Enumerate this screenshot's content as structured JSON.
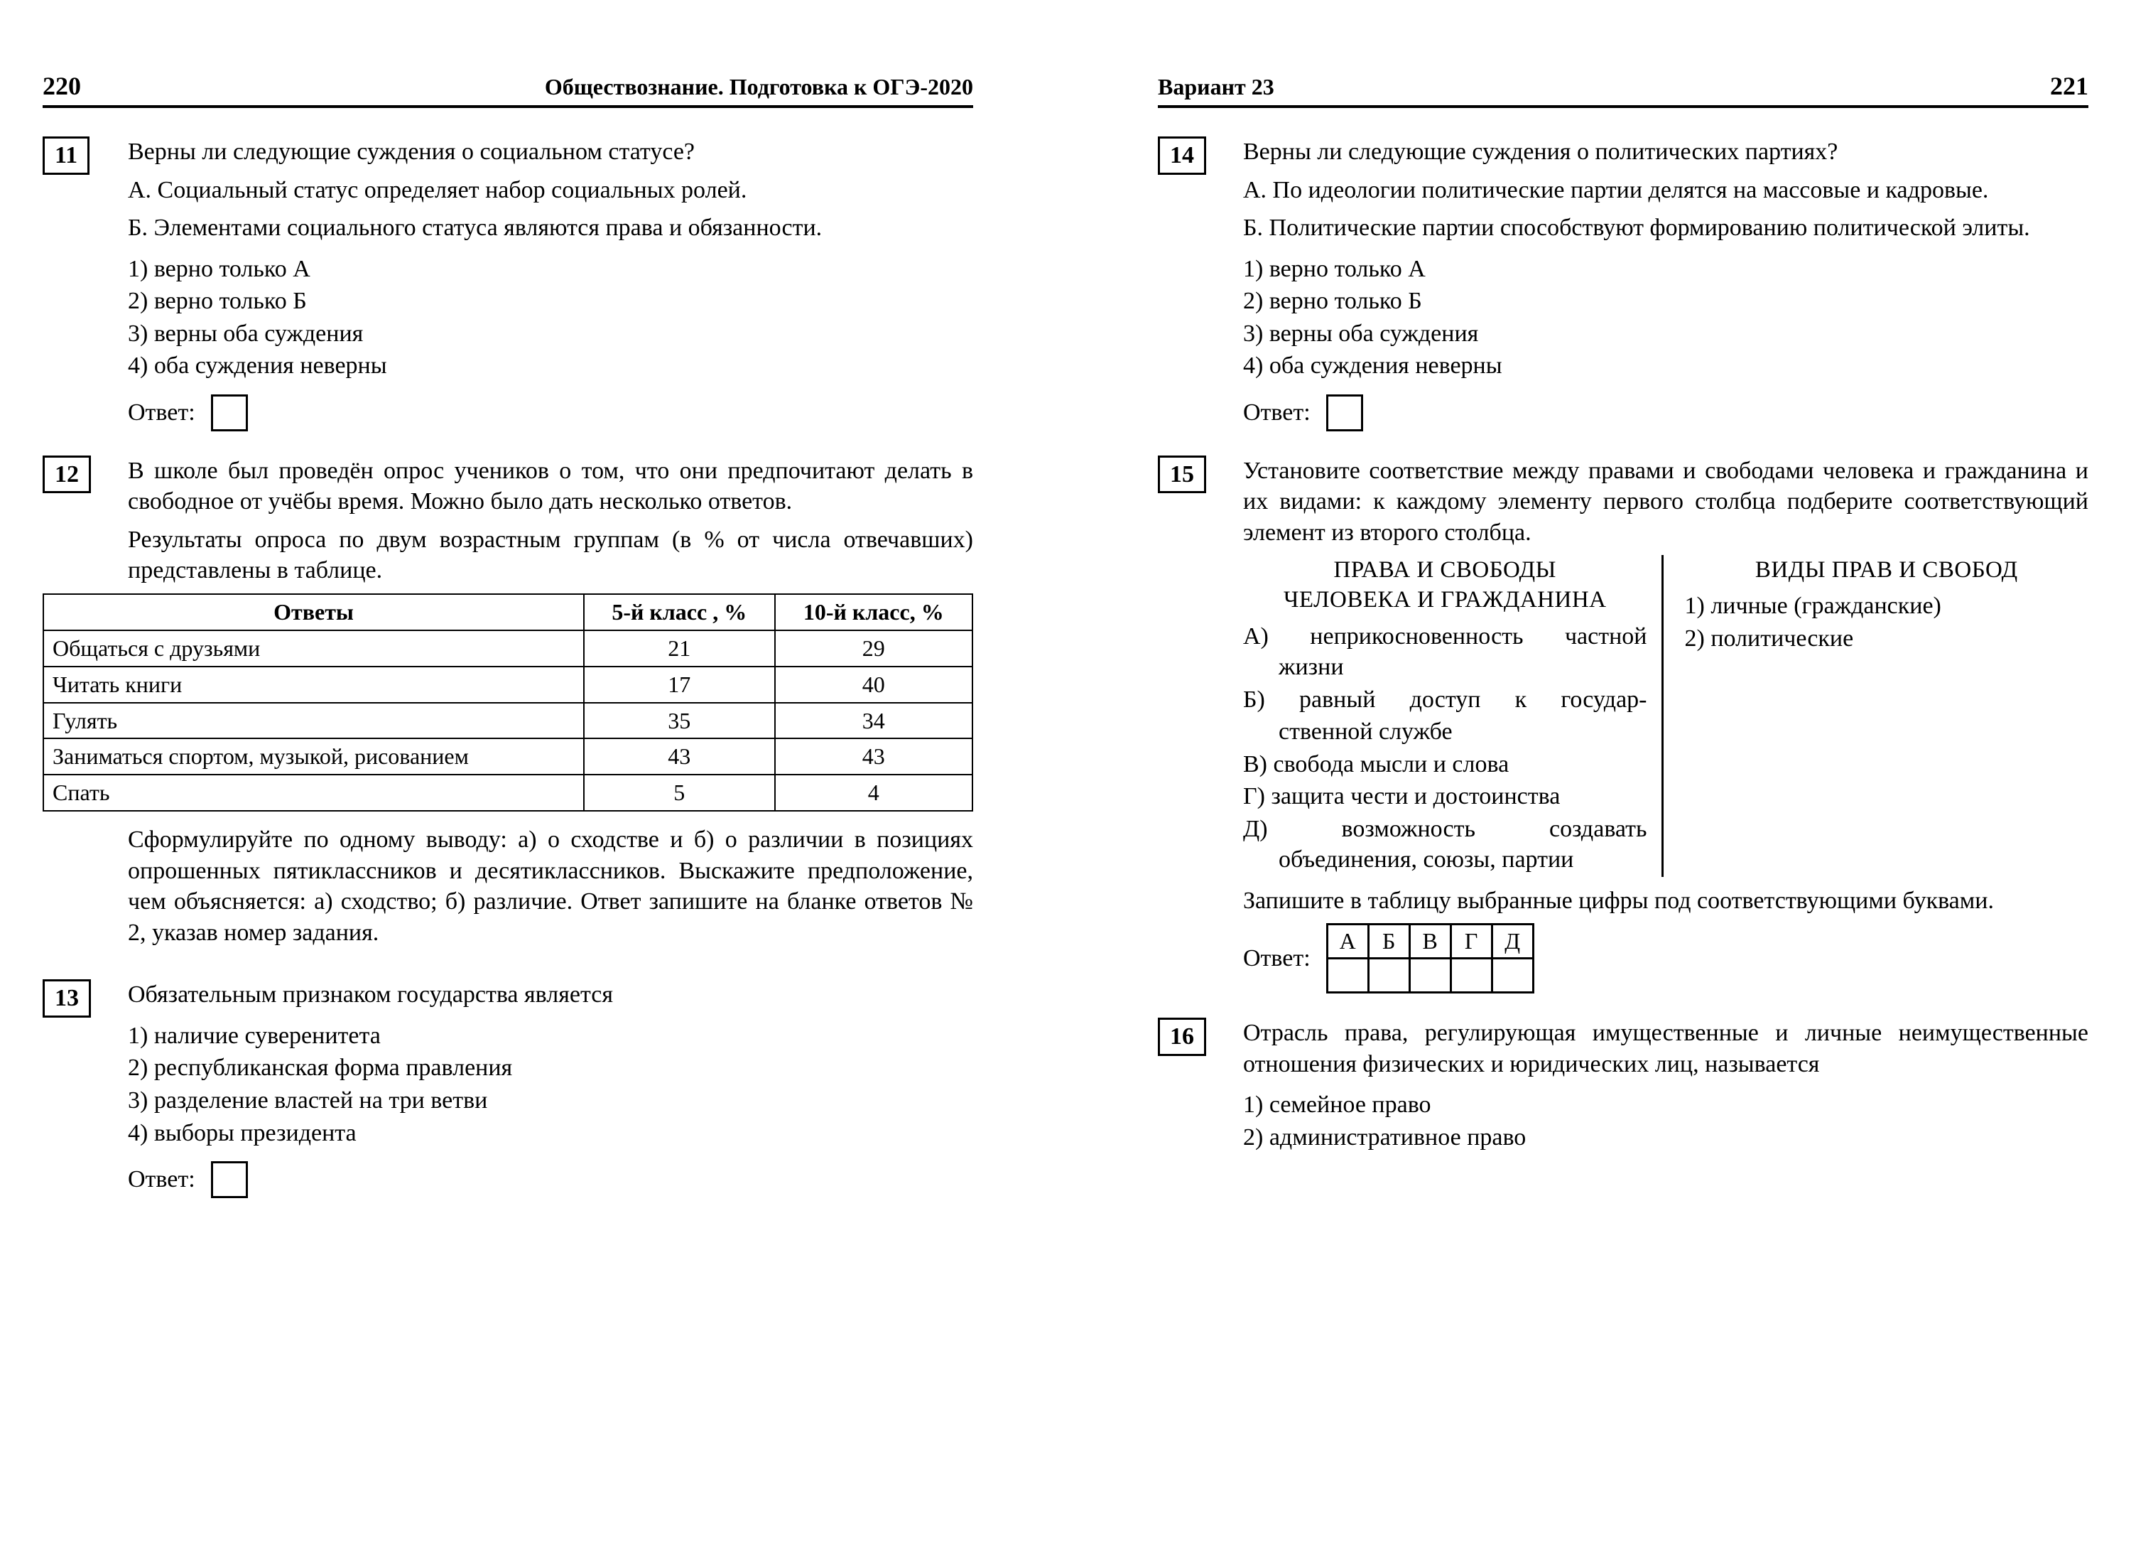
{
  "left": {
    "page_num": "220",
    "title": "Обществознание. Подготовка к ОГЭ-2020"
  },
  "right": {
    "title": "Вариант 23",
    "page_num": "221"
  },
  "answer_label": "Ответ:",
  "q11": {
    "num": "11",
    "stem": "Верны ли следующие суждения о социальном статусе?",
    "a": "А. Социальный статус определяет набор социальных ролей.",
    "b": "Б. Элементами социального статуса являются права и обязанности.",
    "o1": "1) верно только А",
    "o2": "2) верно только Б",
    "o3": "3) верны оба суждения",
    "o4": "4) оба суждения неверны"
  },
  "q12": {
    "num": "12",
    "stem1": "В школе был проведён опрос учеников о том, что они предпочитают делать в свободное от учёбы время. Можно было дать несколько ответов.",
    "stem2": "Результаты опроса по двум возрастным группам (в % от числа отвечавших) представлены в таблице.",
    "th_answers": "Ответы",
    "th_c5": "5-й класс , %",
    "th_c10": "10-й класс, %",
    "rows": [
      {
        "label": "Общаться с друзьями",
        "c5": "21",
        "c10": "29"
      },
      {
        "label": "Читать книги",
        "c5": "17",
        "c10": "40"
      },
      {
        "label": "Гулять",
        "c5": "35",
        "c10": "34"
      },
      {
        "label": "Заниматься спортом, музыкой, рисованием",
        "c5": "43",
        "c10": "43"
      },
      {
        "label": "Спать",
        "c5": "5",
        "c10": "4"
      }
    ],
    "tail": "Сформулируйте по одному выводу: а) о сходстве и б) о различии в позициях опрошенных пятиклассников и десятиклассников. Выскажите предположение, чем объясняется: а) сходство; б) различие. Ответ запишите на бланке ответов № 2, указав номер задания."
  },
  "q13": {
    "num": "13",
    "stem": "Обязательным признаком государства является",
    "o1": "1) наличие суверенитета",
    "o2": "2) республиканская форма правления",
    "o3": "3) разделение властей на три ветви",
    "o4": "4) выборы президента"
  },
  "q14": {
    "num": "14",
    "stem": "Верны ли следующие суждения о политических партиях?",
    "a": "А. По идеологии политические партии делятся на массовые и кадровые.",
    "b": "Б. Политические партии способствуют формированию политической элиты.",
    "o1": "1) верно только А",
    "o2": "2) верно только Б",
    "o3": "3) верны оба суждения",
    "o4": "4) оба суждения неверны"
  },
  "q15": {
    "num": "15",
    "stem": "Установите соответствие между правами и свободами человека и гражданина и их видами: к каждому элементу первого столбца подберите соответствующий элемент из второго столбца.",
    "head_left1": "ПРАВА И СВОБОДЫ",
    "head_left2": "ЧЕЛОВЕКА И ГРАЖДАНИНА",
    "head_right": "ВИДЫ ПРАВ И СВОБОД",
    "la": "А) неприкосновенность частной жизни",
    "lb1": "Б) равный доступ к государ-",
    "lb2": "ственной службе",
    "lc": "В) свобода мысли и слова",
    "ld": "Г) защита чести и достоинства",
    "le": "Д) возможность создавать объединения, союзы, партии",
    "r1": "1) личные (гражданские)",
    "r2": "2) политические",
    "tail": "Запишите в таблицу выбранные цифры под соответствующими буквами.",
    "hA": "А",
    "hB": "Б",
    "hV": "В",
    "hG": "Г",
    "hD": "Д"
  },
  "q16": {
    "num": "16",
    "stem": "Отрасль права, регулирующая имущественные и личные неимущественные отношения физических и юридических лиц, называется",
    "o1": "1) семейное право",
    "o2": "2) административное право"
  }
}
